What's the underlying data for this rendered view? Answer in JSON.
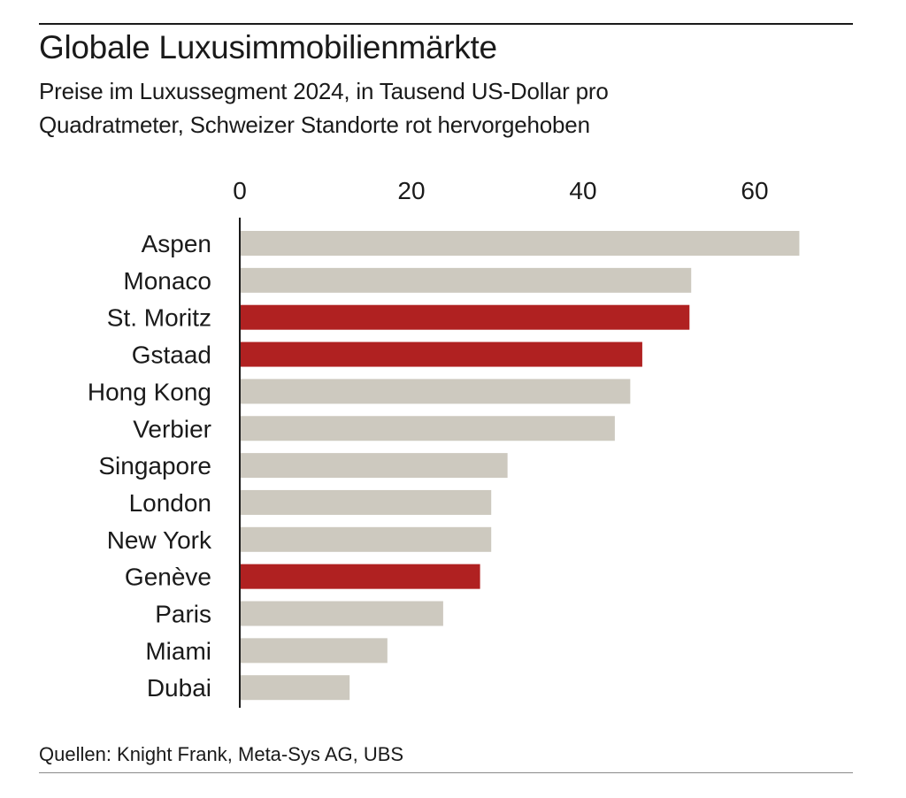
{
  "header": {
    "title": "Globale Luxusimmobilienmärkte",
    "subtitle": "Preise im Luxussegment 2024, in Tausend US-Dollar pro Quadratmeter, Schweizer Standorte rot hervorgehoben"
  },
  "footer": {
    "source": "Quellen: Knight Frank, Meta-Sys AG, UBS"
  },
  "chart_data": {
    "type": "bar",
    "orientation": "horizontal",
    "title": "Globale Luxusimmobilienmärkte",
    "subtitle": "Preise im Luxussegment 2024, in Tausend US-Dollar pro Quadratmeter, Schweizer Standorte rot hervorgehoben",
    "xlabel": "",
    "ylabel": "",
    "xlim": [
      0,
      70
    ],
    "ticks": [
      0,
      20,
      40,
      60
    ],
    "tick_labels": [
      "0",
      "20",
      "40",
      "60"
    ],
    "axis_position": "top",
    "grid": false,
    "legend": "none",
    "colors": {
      "default": "#cdc9bf",
      "highlight": "#b02121"
    },
    "categories": [
      "Aspen",
      "Monaco",
      "St. Moritz",
      "Gstaad",
      "Hong Kong",
      "Verbier",
      "Singapore",
      "London",
      "New York",
      "Genève",
      "Paris",
      "Miami",
      "Dubai"
    ],
    "values": [
      65.2,
      52.6,
      52.4,
      46.9,
      45.5,
      43.7,
      31.2,
      29.3,
      29.3,
      28.0,
      23.7,
      17.2,
      12.8
    ],
    "highlighted": [
      false,
      false,
      true,
      true,
      false,
      false,
      false,
      false,
      false,
      true,
      false,
      false,
      false
    ]
  }
}
